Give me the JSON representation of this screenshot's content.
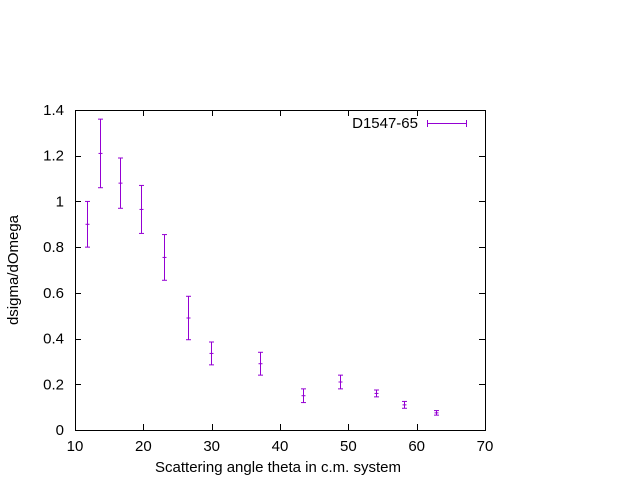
{
  "chart_data": {
    "type": "scatter",
    "xlabel": "Scattering angle theta in c.m. system",
    "ylabel": "dsigma/dOmega",
    "xlim": [
      10,
      70
    ],
    "ylim": [
      0,
      1.4
    ],
    "xticks": [
      "10",
      "20",
      "30",
      "40",
      "50",
      "60",
      "70"
    ],
    "yticks": [
      "0",
      "0.2",
      "0.4",
      "0.6",
      "0.8",
      "1",
      "1.2",
      "1.4"
    ],
    "grid": false,
    "legend_position": "top-right",
    "series": [
      {
        "name": "D1547-65",
        "color": "#9400d3",
        "error_bars": "y",
        "points": [
          {
            "x": 11.8,
            "y": 0.9,
            "err": 0.1
          },
          {
            "x": 13.6,
            "y": 1.21,
            "err": 0.15
          },
          {
            "x": 16.6,
            "y": 1.08,
            "err": 0.11
          },
          {
            "x": 19.7,
            "y": 0.965,
            "err": 0.105
          },
          {
            "x": 23.0,
            "y": 0.755,
            "err": 0.1
          },
          {
            "x": 26.6,
            "y": 0.49,
            "err": 0.095
          },
          {
            "x": 29.9,
            "y": 0.335,
            "err": 0.05
          },
          {
            "x": 37.1,
            "y": 0.29,
            "err": 0.05
          },
          {
            "x": 43.3,
            "y": 0.15,
            "err": 0.03
          },
          {
            "x": 48.8,
            "y": 0.21,
            "err": 0.03
          },
          {
            "x": 54.0,
            "y": 0.16,
            "err": 0.015
          },
          {
            "x": 58.2,
            "y": 0.11,
            "err": 0.015
          },
          {
            "x": 62.9,
            "y": 0.075,
            "err": 0.01
          }
        ]
      }
    ]
  }
}
